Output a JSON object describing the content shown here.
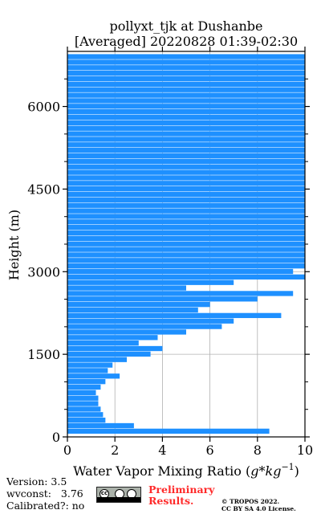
{
  "chart_data": {
    "type": "bar",
    "orientation": "horizontal",
    "title": "pollyxt_tjk at Dushanbe",
    "subtitle": "[Averaged] 20220828 01:39-02:30",
    "xlabel": "Water Vapor Mixing Ratio ($g*kg^{-1}$)",
    "xlabel_parts": {
      "text": "Water Vapor Mixing Ratio (",
      "g": "g",
      "star": "*",
      "kg": "kg",
      "sup": "−1",
      "close": ")"
    },
    "ylabel": "Height (m)",
    "xlim": [
      0,
      10
    ],
    "ylim": [
      0,
      7000
    ],
    "xticks": [
      "0",
      "2",
      "4",
      "6",
      "8",
      "10"
    ],
    "yticks": [
      "0",
      "1500",
      "3000",
      "4500",
      "6000"
    ],
    "grid": true,
    "bar_color": "#1e90ff",
    "series": [
      {
        "heights_m": [
          100,
          200,
          300,
          400,
          500,
          600,
          700,
          800,
          900,
          1000,
          1100,
          1200,
          1300,
          1400,
          1500,
          1600,
          1700,
          1800,
          1900,
          2000,
          2100,
          2200,
          2300,
          2400,
          2500,
          2600,
          2700,
          2800,
          2900,
          3000,
          3100,
          3200,
          3300,
          3400,
          3500,
          3600,
          3700,
          3800,
          3900,
          4000,
          4100,
          4200,
          4300,
          4400,
          4500,
          4600,
          4700,
          4800,
          4900,
          5000,
          5100,
          5200,
          5300,
          5400,
          5500,
          5600,
          5700,
          5800,
          5900,
          6000,
          6100,
          6200,
          6300,
          6400,
          6500,
          6600,
          6700,
          6800,
          6900
        ],
        "values": [
          8.5,
          2.8,
          1.6,
          1.5,
          1.4,
          1.3,
          1.3,
          1.2,
          1.4,
          1.6,
          2.2,
          1.7,
          1.9,
          2.5,
          3.5,
          4.0,
          3.0,
          3.8,
          5.0,
          6.5,
          7.0,
          9.0,
          5.5,
          6.0,
          8.0,
          9.5,
          5.0,
          7.0,
          10.0,
          9.5,
          10.0,
          10.0,
          10.0,
          10.0,
          10.0,
          10.0,
          10.0,
          10.0,
          10.0,
          10.0,
          10.0,
          10.0,
          10.0,
          10.0,
          10.0,
          10.0,
          10.0,
          10.0,
          10.0,
          10.0,
          10.0,
          10.0,
          10.0,
          10.0,
          10.0,
          10.0,
          10.0,
          10.0,
          10.0,
          10.0,
          10.0,
          10.0,
          10.0,
          10.0,
          10.0,
          10.0,
          10.0,
          10.0,
          10.0
        ]
      }
    ]
  },
  "footer": {
    "version": "Version: 3.5",
    "wvconst_label": "wvconst:",
    "wvconst_value": "3.76",
    "calibrated": "Calibrated?: no",
    "preliminary_line1": "Preliminary",
    "preliminary_line2": "Results.",
    "copyright_line1": "© TROPOS 2022.",
    "copyright_line2": "CC BY SA 4.0 License."
  },
  "license_badge": {
    "icon": "cc-by-sa-icon",
    "text": "cc"
  }
}
